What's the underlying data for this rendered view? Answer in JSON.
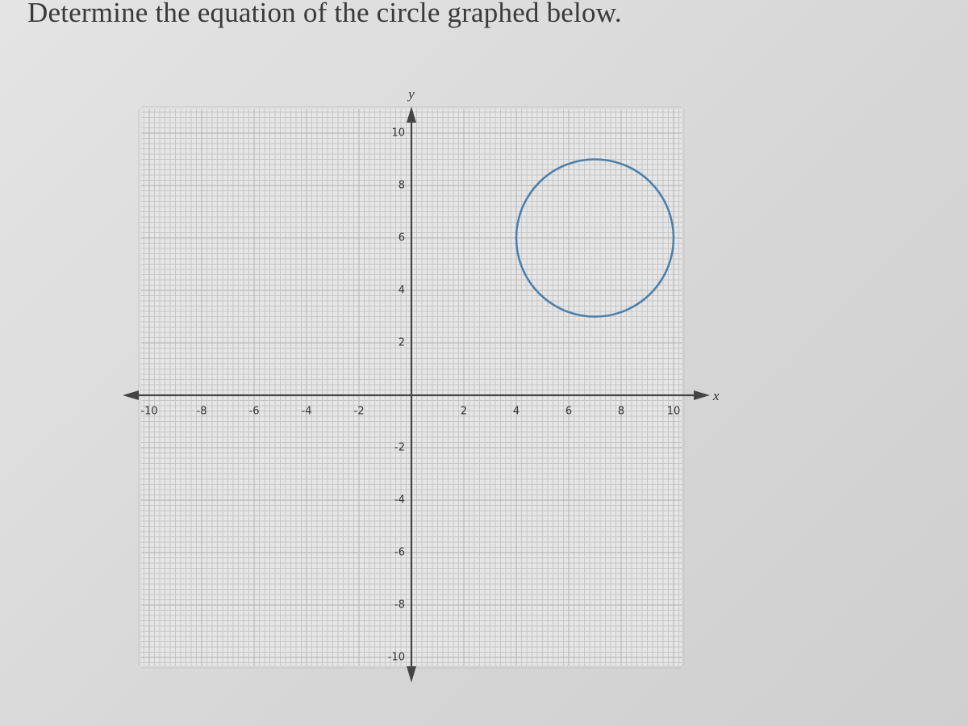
{
  "title": "Determine the equation of the circle graphed below.",
  "chart_data": {
    "type": "circle",
    "x_label": "x",
    "y_label": "y",
    "xlim": [
      -10,
      10
    ],
    "ylim": [
      -10,
      10
    ],
    "xticks": [
      -10,
      -8,
      -6,
      -4,
      -2,
      2,
      4,
      6,
      8,
      10
    ],
    "yticks": [
      -10,
      -8,
      -6,
      -4,
      -2,
      2,
      4,
      6,
      8,
      10
    ],
    "grid": true,
    "center_x": 7,
    "center_y": 6,
    "radius": 3,
    "color": "#4a7fab"
  }
}
